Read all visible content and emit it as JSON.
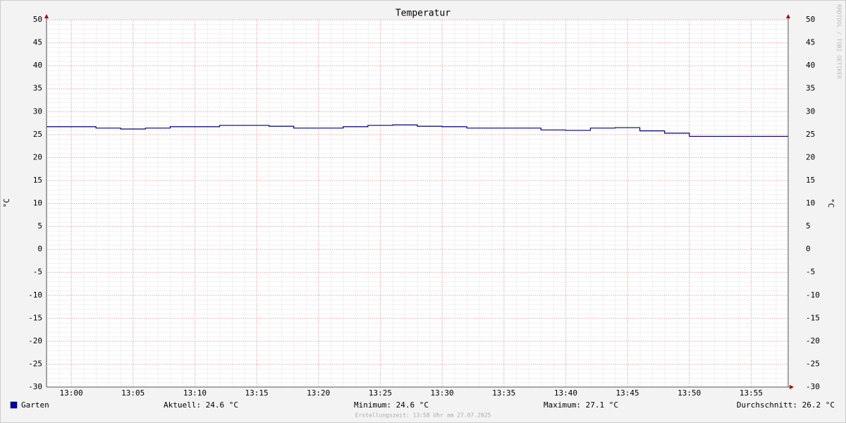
{
  "chart_data": {
    "type": "line",
    "title": "Temperatur",
    "y_label": "°C",
    "y2_label": "°C",
    "x": [
      "12:58",
      "13:02",
      "13:04",
      "13:06",
      "13:08",
      "13:12",
      "13:16",
      "13:18",
      "13:22",
      "13:24",
      "13:26",
      "13:28",
      "13:30",
      "13:32",
      "13:38",
      "13:40",
      "13:42",
      "13:44",
      "13:46",
      "13:48",
      "13:50",
      "13:58"
    ],
    "series": [
      {
        "name": "Garten",
        "color": "#000080",
        "legend_color": "#0000aa",
        "values": [
          26.7,
          26.4,
          26.2,
          26.4,
          26.7,
          27.0,
          26.8,
          26.4,
          26.7,
          27.0,
          27.1,
          26.8,
          26.7,
          26.4,
          26.0,
          25.9,
          26.4,
          26.5,
          25.8,
          25.3,
          24.6,
          24.6
        ]
      }
    ],
    "step": true,
    "xlim": [
      "12:58",
      "13:58"
    ],
    "xticks": [
      "13:00",
      "13:05",
      "13:10",
      "13:15",
      "13:20",
      "13:25",
      "13:30",
      "13:35",
      "13:40",
      "13:45",
      "13:50",
      "13:55"
    ],
    "ylim": [
      -30,
      50
    ],
    "yticks": [
      -30,
      -25,
      -20,
      -15,
      -10,
      -5,
      0,
      5,
      10,
      15,
      20,
      25,
      30,
      35,
      40,
      45,
      50
    ],
    "grid": true,
    "stats": [
      "Aktuell: 24.6 °C",
      "Minimum: 24.6 °C",
      "Maximum: 27.1 °C",
      "Durchschnitt: 26.2 °C"
    ],
    "footer": "Erstellungszeit: 13:58 Uhr am 27.07.2025",
    "watermark": "RRDTOOL / TOBI OETIKER"
  }
}
